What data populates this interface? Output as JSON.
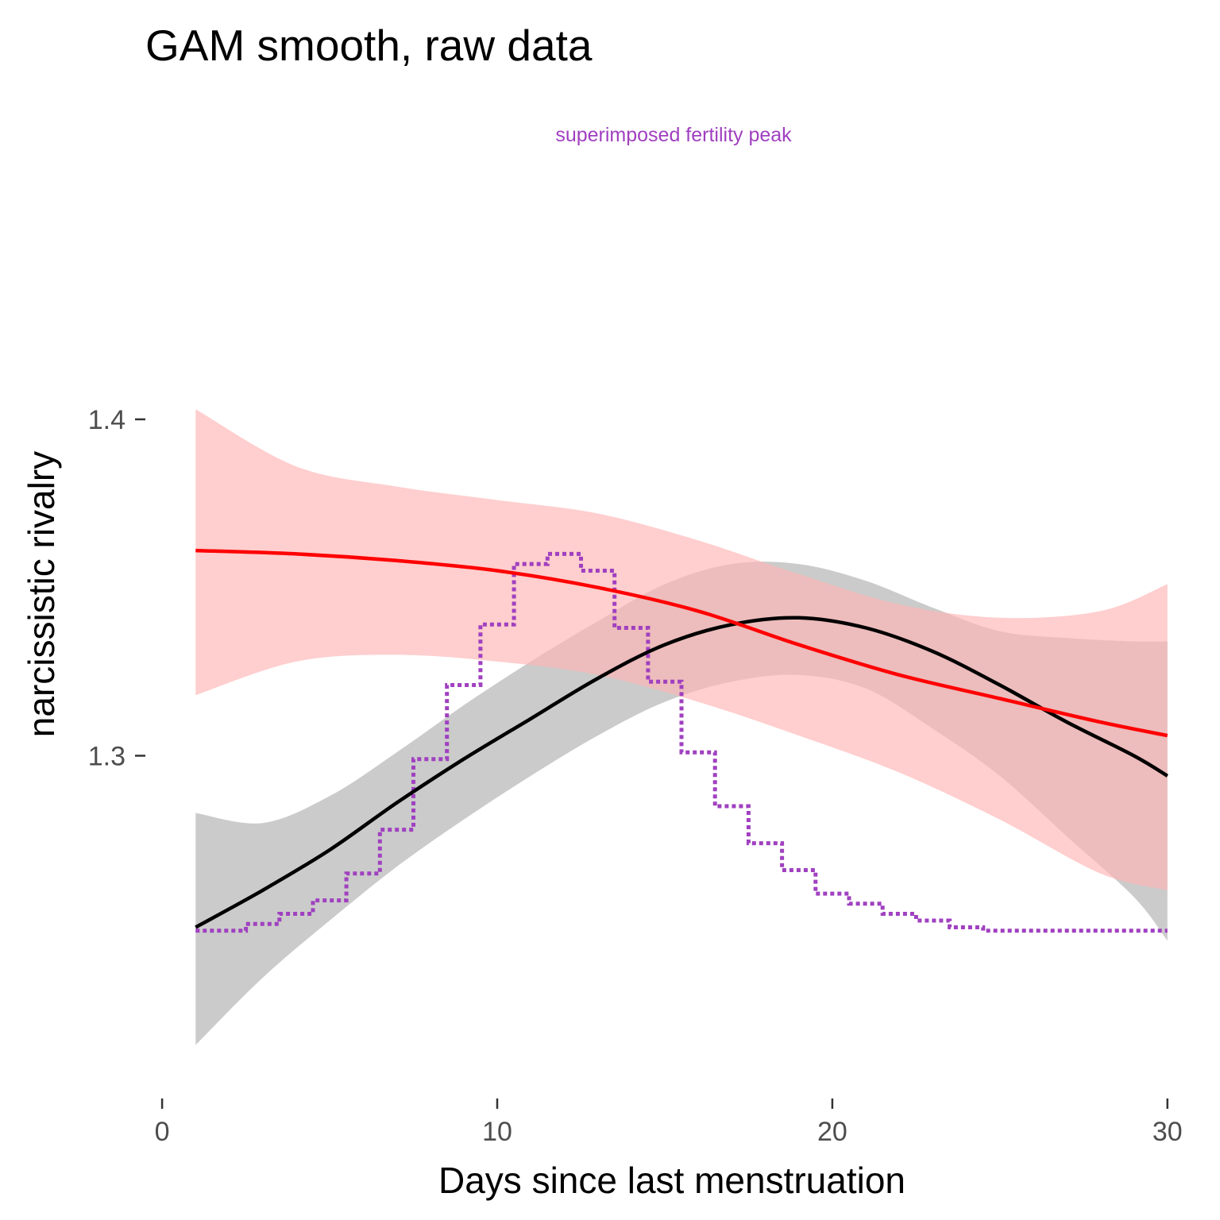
{
  "chart_data": {
    "type": "line",
    "title": "GAM smooth, raw data",
    "annotation": "superimposed fertility peak",
    "xlabel": "Days since last menstruation",
    "ylabel": "narcissistic rivalry",
    "xlim": [
      -0.5,
      31
    ],
    "ylim": [
      1.2,
      1.455
    ],
    "x_ticks": [
      0,
      10,
      20,
      30
    ],
    "x_tick_labels": [
      "0",
      "10",
      "20",
      "30"
    ],
    "y_ticks": [
      1.3,
      1.4
    ],
    "y_tick_labels": [
      "1.3",
      "1.4"
    ],
    "grid": false,
    "legend": "none",
    "colors": {
      "black_line": "#000000",
      "black_band": "#bebebe",
      "red_line": "#ff0000",
      "red_band": "#ffb3b3",
      "fertility": "#a040c0",
      "annotation": "#a040c0"
    },
    "series": [
      {
        "x": [
          1,
          3,
          5,
          7,
          9,
          11,
          13,
          15,
          17,
          19,
          21,
          23,
          25,
          27,
          29,
          30
        ],
        "y": [
          1.249,
          1.26,
          1.272,
          1.286,
          1.299,
          1.311,
          1.323,
          1.333,
          1.339,
          1.341,
          1.338,
          1.331,
          1.321,
          1.31,
          1.3,
          1.294
        ],
        "upper": [
          1.283,
          1.28,
          1.288,
          1.301,
          1.315,
          1.328,
          1.34,
          1.351,
          1.357,
          1.357,
          1.352,
          1.344,
          1.337,
          1.335,
          1.334,
          1.334
        ],
        "lower": [
          1.214,
          1.234,
          1.251,
          1.267,
          1.281,
          1.294,
          1.306,
          1.316,
          1.322,
          1.324,
          1.32,
          1.308,
          1.294,
          1.276,
          1.258,
          1.245
        ]
      },
      {
        "x": [
          1,
          4,
          7,
          10,
          13,
          16,
          19,
          22,
          25,
          28,
          30
        ],
        "y": [
          1.361,
          1.36,
          1.358,
          1.355,
          1.35,
          1.343,
          1.333,
          1.324,
          1.317,
          1.31,
          1.306
        ],
        "upper": [
          1.403,
          1.386,
          1.38,
          1.376,
          1.372,
          1.364,
          1.354,
          1.345,
          1.341,
          1.343,
          1.351
        ],
        "lower": [
          1.318,
          1.328,
          1.33,
          1.328,
          1.324,
          1.316,
          1.306,
          1.295,
          1.281,
          1.265,
          1.26
        ]
      },
      {
        "x": [
          1,
          2,
          3,
          4,
          5,
          6,
          7,
          8,
          9,
          10,
          11,
          12,
          13,
          14,
          15,
          16,
          17,
          18,
          19,
          20,
          21,
          22,
          23,
          24,
          25,
          26,
          27,
          28,
          29,
          30
        ],
        "y": [
          1.248,
          1.248,
          1.25,
          1.253,
          1.257,
          1.265,
          1.278,
          1.299,
          1.321,
          1.339,
          1.357,
          1.36,
          1.355,
          1.338,
          1.322,
          1.301,
          1.285,
          1.274,
          1.266,
          1.259,
          1.256,
          1.253,
          1.251,
          1.249,
          1.248,
          1.248,
          1.248,
          1.248,
          1.248,
          1.248
        ]
      }
    ]
  }
}
